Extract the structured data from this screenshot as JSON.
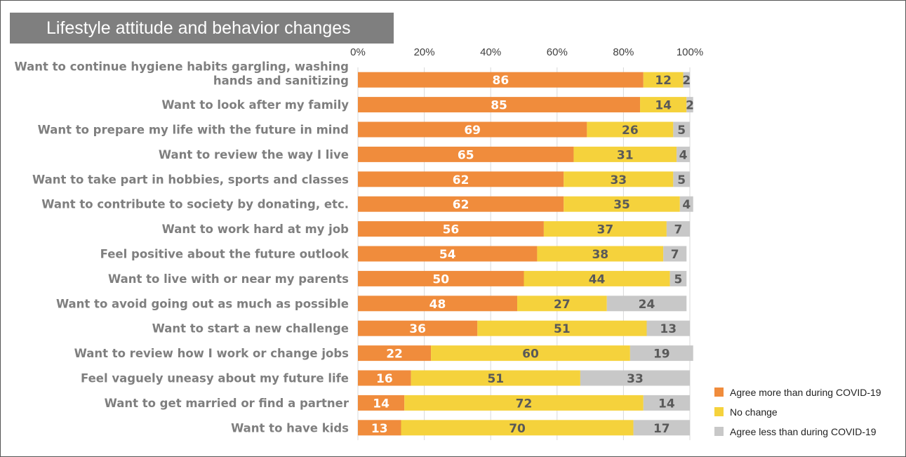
{
  "title": "Lifestyle attitude and behavior changes",
  "colors": {
    "agree_more": "#f08c3c",
    "no_change": "#f5d23c",
    "agree_less": "#c8c8c8",
    "label_on_orange": "#ffffff",
    "label_on_other": "#595959"
  },
  "chart_data": {
    "type": "bar",
    "orientation": "horizontal",
    "stacked": true,
    "title": "Lifestyle attitude and behavior changes",
    "xlim": [
      0,
      100
    ],
    "x_ticks": [
      "0%",
      "20%",
      "40%",
      "60%",
      "80%",
      "100%"
    ],
    "x_tick_values": [
      0,
      20,
      40,
      60,
      80,
      100
    ],
    "grid": true,
    "legend_position": "bottom-right",
    "categories": [
      [
        "Want to continue hygiene habits gargling, washing",
        "hands and sanitizing"
      ],
      [
        "Want to look after my family"
      ],
      [
        "Want to prepare my life with the future in mind"
      ],
      [
        "Want to review the way I live"
      ],
      [
        "Want to take part in hobbies, sports and classes"
      ],
      [
        "Want to contribute to society by donating, etc."
      ],
      [
        "Want to work hard at my job"
      ],
      [
        "Feel positive about the future outlook"
      ],
      [
        "Want to live with or near my parents"
      ],
      [
        "Want to avoid going out as much as possible"
      ],
      [
        "Want to start a new challenge"
      ],
      [
        "Want to review how I work or change jobs"
      ],
      [
        "Feel vaguely uneasy about my future life"
      ],
      [
        "Want to get married or find a partner"
      ],
      [
        "Want to have kids"
      ]
    ],
    "series": [
      {
        "name": "Agree more than during COVID-19",
        "values": [
          86,
          85,
          69,
          65,
          62,
          62,
          56,
          54,
          50,
          48,
          36,
          22,
          16,
          14,
          13
        ]
      },
      {
        "name": "No change",
        "values": [
          12,
          14,
          26,
          31,
          33,
          35,
          37,
          38,
          44,
          27,
          51,
          60,
          51,
          72,
          70
        ]
      },
      {
        "name": "Agree less than during COVID-19",
        "values": [
          2,
          2,
          5,
          4,
          5,
          4,
          7,
          7,
          5,
          24,
          13,
          19,
          33,
          14,
          17
        ]
      }
    ]
  }
}
